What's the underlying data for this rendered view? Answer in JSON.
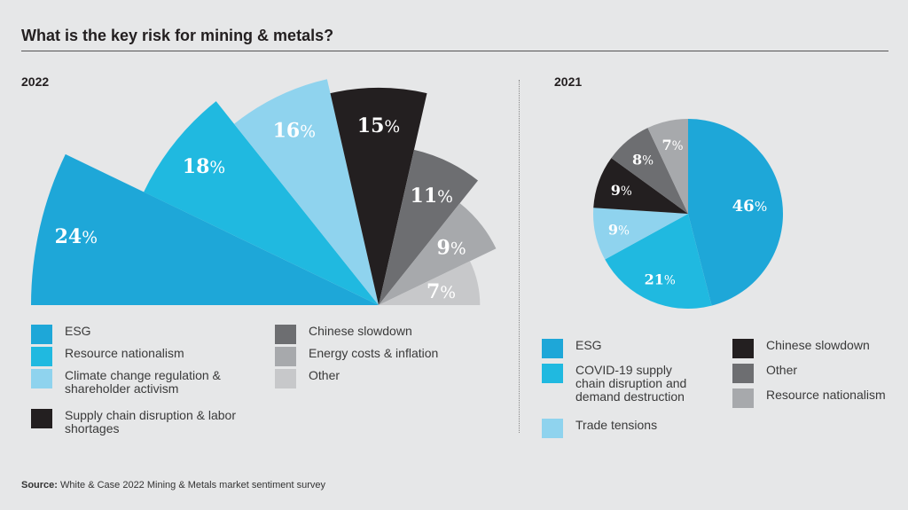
{
  "title": "What is the key risk for mining & metals?",
  "source_label": "Source:",
  "source_text": "White & Case 2022 Mining & Metals market sentiment survey",
  "chart_data": [
    {
      "type": "polar-area",
      "title": "2022",
      "unit": "%",
      "categories": [
        "ESG",
        "Resource nationalism",
        "Climate change regulation & shareholder activism",
        "Supply chain disruption & labor shortages",
        "Chinese slowdown",
        "Energy costs & inflation",
        "Other"
      ],
      "values": [
        24,
        18,
        16,
        15,
        11,
        9,
        7
      ],
      "colors": [
        "#1ea7d8",
        "#20b9e0",
        "#8fd3ee",
        "#231f20",
        "#6d6e71",
        "#a7a9ac",
        "#c7c8ca"
      ],
      "legend": "bottom"
    },
    {
      "type": "pie",
      "title": "2021",
      "unit": "%",
      "categories": [
        "ESG",
        "COVID-19 supply chain disruption and demand destruction",
        "Trade tensions",
        "Chinese slowdown",
        "Other",
        "Resource nationalism"
      ],
      "values": [
        46,
        21,
        9,
        9,
        8,
        7
      ],
      "colors": [
        "#1ea7d8",
        "#20b9e0",
        "#8fd3ee",
        "#231f20",
        "#6d6e71",
        "#a7a9ac"
      ],
      "legend": "bottom"
    }
  ]
}
